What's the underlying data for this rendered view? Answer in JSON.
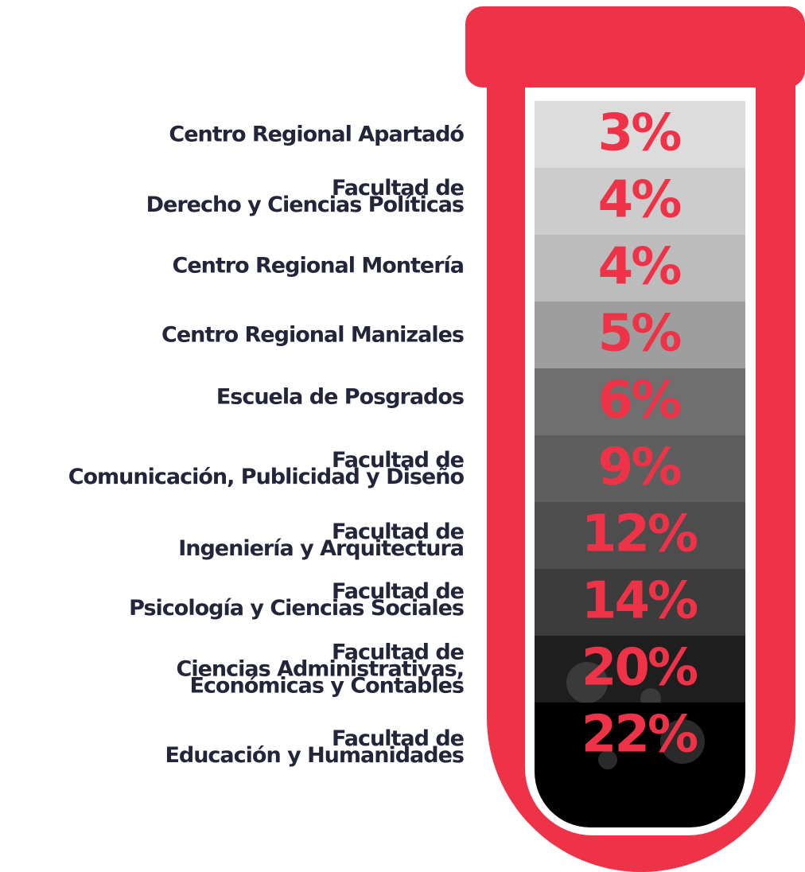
{
  "items": [
    {
      "label": [
        "Centro Regional Apartadó"
      ],
      "value": "3%"
    },
    {
      "label": [
        "Facultad de",
        "Derecho y Ciencias Políticas"
      ],
      "value": "4%"
    },
    {
      "label": [
        "Centro Regional Montería"
      ],
      "value": "4%"
    },
    {
      "label": [
        "Centro Regional Manizales"
      ],
      "value": "5%"
    },
    {
      "label": [
        "Escuela de Posgrados"
      ],
      "value": "6%"
    },
    {
      "label": [
        "Facultad de",
        "Comunicación, Publicidad y Diseño"
      ],
      "value": "9%"
    },
    {
      "label": [
        "Facultad de",
        "Ingeniería y Arquitectura"
      ],
      "value": "12%"
    },
    {
      "label": [
        "Facultad de",
        "Psicología y Ciencias Sociales"
      ],
      "value": "14%"
    },
    {
      "label": [
        "Facultad de",
        "Ciencias Administrativas,",
        "Económicas y Contables"
      ],
      "value": "20%"
    },
    {
      "label": [
        "Facultad de",
        "Educación y Humanidades"
      ],
      "value": "22%"
    }
  ]
}
